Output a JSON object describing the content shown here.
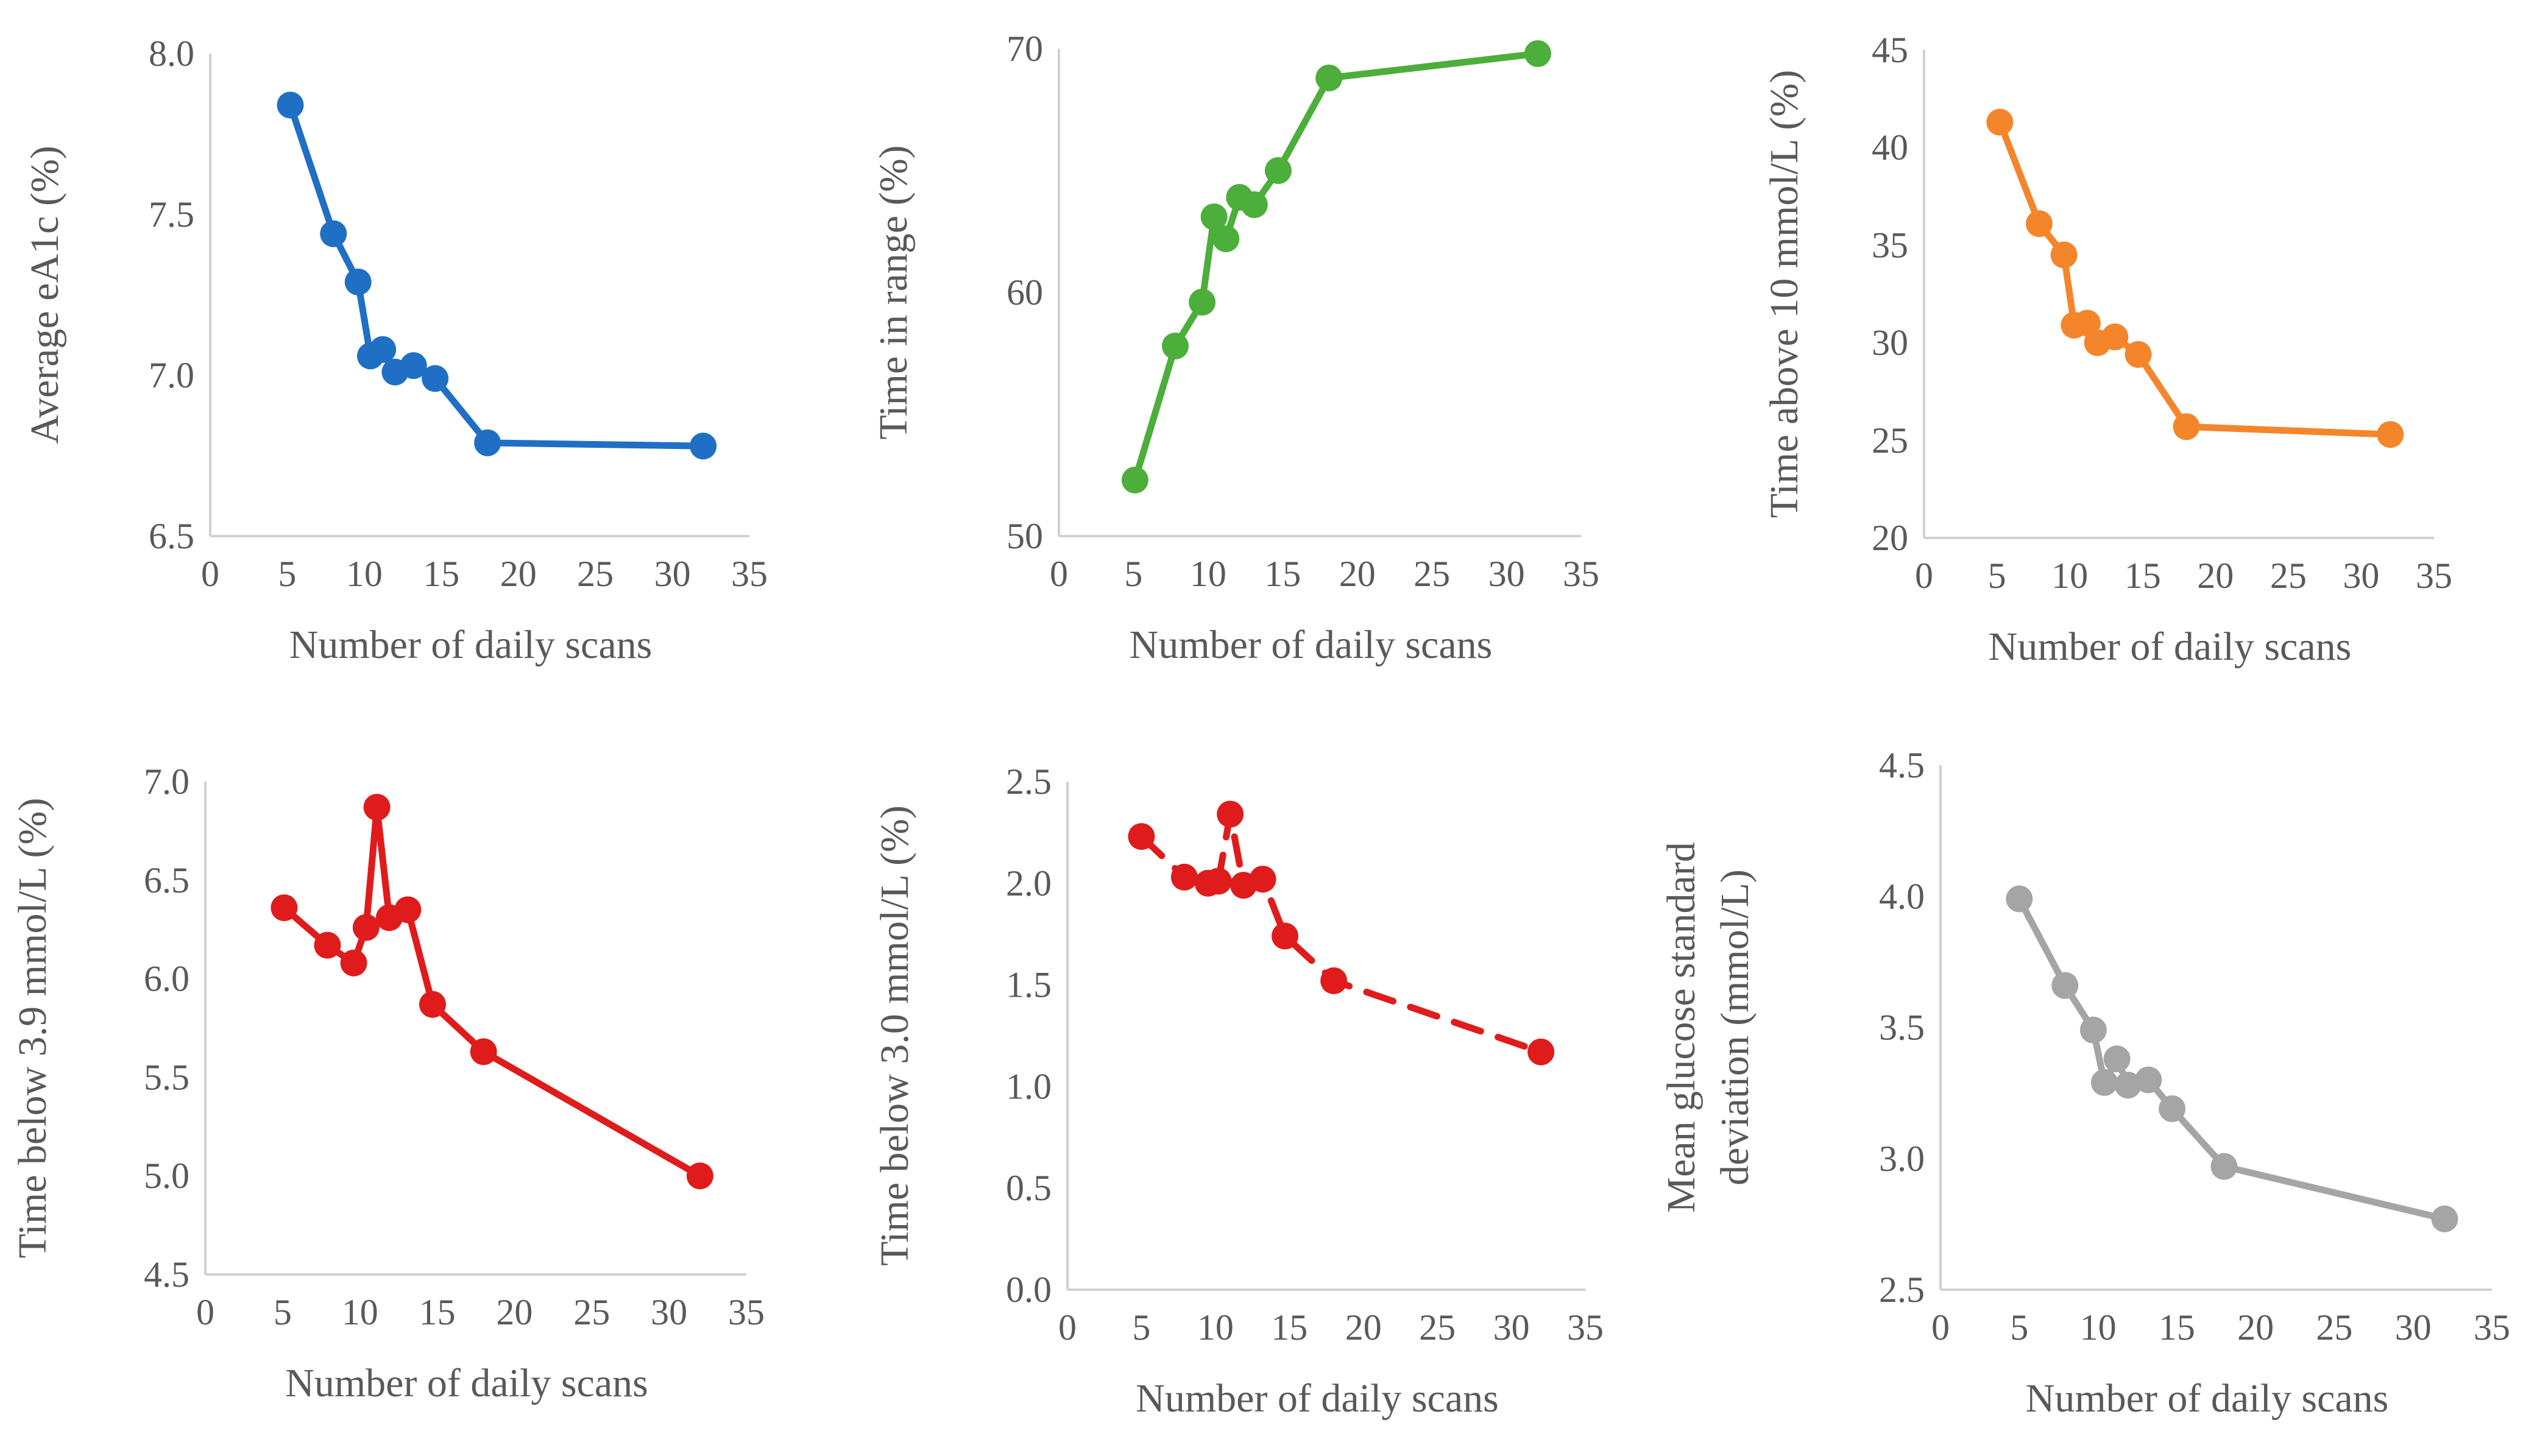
{
  "chart_data": [
    {
      "type": "line",
      "color": "#1f6fc5",
      "dashed": false,
      "xlabel": "Number of daily scans",
      "ylabel_lines": [
        "Average eA1c (%)"
      ],
      "xlim": [
        0,
        35
      ],
      "ylim": [
        6.5,
        8.0
      ],
      "x_ticks": [
        "0",
        "5",
        "10",
        "15",
        "20",
        "25",
        "30",
        "35"
      ],
      "y_ticks": [
        "6.5",
        "7.0",
        "7.5",
        "8.0"
      ],
      "series": [
        {
          "x": [
            5.2,
            8,
            9.6,
            10.4,
            11.2,
            12,
            13.2,
            14.6,
            18,
            32
          ],
          "y": [
            7.84,
            7.44,
            7.29,
            7.06,
            7.08,
            7.01,
            7.03,
            6.99,
            6.79,
            6.78
          ]
        }
      ]
    },
    {
      "type": "line",
      "color": "#4cae3b",
      "dashed": false,
      "xlabel": "Number of daily scans",
      "ylabel_lines": [
        "Time in range (%)"
      ],
      "xlim": [
        0,
        35
      ],
      "ylim": [
        50,
        70
      ],
      "x_ticks": [
        "0",
        "5",
        "10",
        "15",
        "20",
        "25",
        "30",
        "35"
      ],
      "y_ticks": [
        "50",
        "60",
        "70"
      ],
      "series": [
        {
          "x": [
            5.1,
            7.8,
            9.6,
            10.4,
            11.2,
            12.1,
            13.1,
            14.7,
            18.1,
            32.1
          ],
          "y": [
            52.3,
            57.8,
            59.6,
            63.1,
            62.2,
            63.9,
            63.6,
            65.0,
            68.8,
            69.8
          ]
        }
      ]
    },
    {
      "type": "line",
      "color": "#f5852b",
      "dashed": false,
      "xlabel": "Number of daily scans",
      "ylabel_lines": [
        "Time above 10 mmol/L (%)"
      ],
      "xlim": [
        0,
        35
      ],
      "ylim": [
        20,
        45
      ],
      "x_ticks": [
        "0",
        "5",
        "10",
        "15",
        "20",
        "25",
        "30",
        "35"
      ],
      "y_ticks": [
        "20",
        "25",
        "30",
        "35",
        "40",
        "45"
      ],
      "series": [
        {
          "x": [
            5.2,
            7.9,
            9.6,
            10.3,
            11.2,
            11.9,
            13.1,
            14.7,
            18.0,
            32.0
          ],
          "y": [
            41.3,
            36.1,
            34.5,
            30.9,
            31.0,
            30.0,
            30.3,
            29.4,
            25.7,
            25.3
          ]
        }
      ]
    },
    {
      "type": "line",
      "color": "#e01b1b",
      "dashed": false,
      "xlabel": "Number of daily scans",
      "ylabel_lines": [
        "Time below 3.9 mmol/L  (%)"
      ],
      "xlim": [
        0,
        35
      ],
      "ylim": [
        4.5,
        7.0
      ],
      "x_ticks": [
        "0",
        "5",
        "10",
        "15",
        "20",
        "25",
        "30",
        "35"
      ],
      "y_ticks": [
        "4.5",
        "5.0",
        "5.5",
        "6.0",
        "6.5",
        "7.0"
      ],
      "series": [
        {
          "x": [
            5.1,
            7.9,
            9.6,
            10.4,
            11.1,
            11.9,
            13.1,
            14.7,
            18.0,
            32.0
          ],
          "y": [
            6.36,
            6.17,
            6.08,
            6.26,
            6.87,
            6.31,
            6.35,
            5.87,
            5.63,
            5.0
          ]
        }
      ]
    },
    {
      "type": "line",
      "color": "#e01b1b",
      "dashed": true,
      "xlabel": "Number of daily scans",
      "ylabel_lines": [
        "Time below 3.0 mmol/L  (%)"
      ],
      "xlim": [
        0,
        35
      ],
      "ylim": [
        0.0,
        2.5
      ],
      "x_ticks": [
        "0",
        "5",
        "10",
        "15",
        "20",
        "25",
        "30",
        "35"
      ],
      "y_ticks": [
        "0.0",
        "0.5",
        "1.0",
        "1.5",
        "2.0",
        "2.5"
      ],
      "series": [
        {
          "x": [
            5.0,
            7.9,
            9.5,
            10.2,
            11.0,
            11.9,
            13.2,
            14.7,
            18.0,
            32.0
          ],
          "y": [
            2.23,
            2.03,
            2.0,
            2.01,
            2.34,
            1.99,
            2.02,
            1.74,
            1.52,
            1.17
          ]
        }
      ]
    },
    {
      "type": "line",
      "color": "#a5a5a5",
      "dashed": false,
      "xlabel": "Number of daily scans",
      "ylabel_lines": [
        "Mean glucose standard",
        "deviation (mmol/L)"
      ],
      "xlim": [
        0,
        35
      ],
      "ylim": [
        2.5,
        4.5
      ],
      "x_ticks": [
        "0",
        "5",
        "10",
        "15",
        "20",
        "25",
        "30",
        "35"
      ],
      "y_ticks": [
        "2.5",
        "3.0",
        "3.5",
        "4.0",
        "4.5"
      ],
      "series": [
        {
          "x": [
            5.0,
            7.9,
            9.7,
            10.4,
            11.2,
            11.9,
            13.2,
            14.7,
            18.0,
            32.0
          ],
          "y": [
            3.99,
            3.66,
            3.49,
            3.29,
            3.38,
            3.28,
            3.3,
            3.19,
            2.97,
            2.77
          ]
        }
      ]
    }
  ]
}
